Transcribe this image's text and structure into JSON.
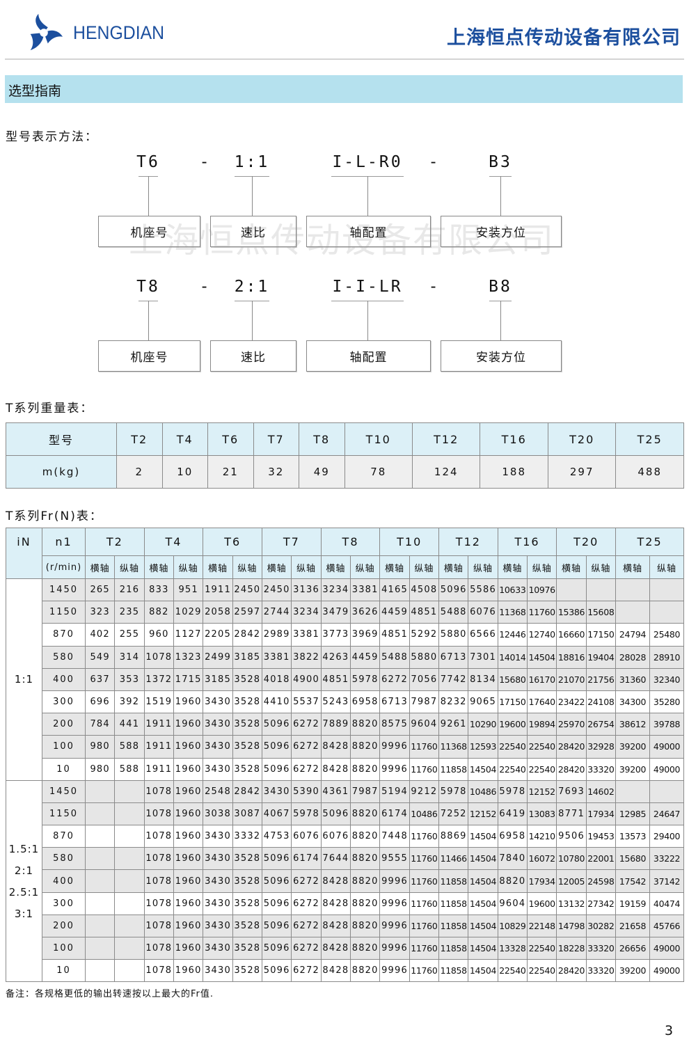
{
  "header": {
    "brand": "HENGDIAN",
    "company": "上海恒点传动设备有限公司",
    "brand_color": "#1c4f9e",
    "logo_icon": "pinwheel-logo"
  },
  "section_title": "选型指南",
  "model_notation": {
    "title": "型号表示方法：",
    "watermark": "上海恒点传动设备有限公司",
    "examples": [
      {
        "codes": [
          "T6",
          "-",
          "1:1",
          "I-L-R0",
          "-",
          "B3"
        ],
        "labels": [
          "机座号",
          "速比",
          "轴配置",
          "安装方位"
        ]
      },
      {
        "codes": [
          "T8",
          "-",
          "2:1",
          "I-I-LR",
          "-",
          "B8"
        ],
        "labels": [
          "机座号",
          "速比",
          "轴配置",
          "安装方位"
        ]
      }
    ]
  },
  "weight_table": {
    "title": "T系列重量表：",
    "row_header": [
      "型号",
      "m(kg)"
    ],
    "models": [
      "T2",
      "T4",
      "T6",
      "T7",
      "T8",
      "T10",
      "T12",
      "T16",
      "T20",
      "T25"
    ],
    "weights": [
      "2",
      "10",
      "21",
      "32",
      "49",
      "78",
      "124",
      "188",
      "297",
      "488"
    ]
  },
  "fr_table": {
    "title": "T系列Fr(N)表：",
    "col_iN": "iN",
    "col_n1": "n1",
    "col_n1_unit": "(r/min)",
    "models": [
      "T2",
      "T4",
      "T6",
      "T7",
      "T8",
      "T10",
      "T12",
      "T16",
      "T20",
      "T25"
    ],
    "sub_headers": [
      "横轴",
      "纵轴"
    ],
    "groups": [
      {
        "ratios": [
          "1:1"
        ],
        "rows": [
          {
            "n1": "1450",
            "values": [
              "265",
              "216",
              "833",
              "951",
              "1911",
              "2450",
              "2450",
              "3136",
              "3234",
              "3381",
              "4165",
              "4508",
              "5096",
              "5586",
              "10633",
              "10976",
              "",
              "",
              "",
              ""
            ]
          },
          {
            "n1": "1150",
            "values": [
              "323",
              "235",
              "882",
              "1029",
              "2058",
              "2597",
              "2744",
              "3234",
              "3479",
              "3626",
              "4459",
              "4851",
              "5488",
              "6076",
              "11368",
              "11760",
              "15386",
              "15608",
              "",
              ""
            ]
          },
          {
            "n1": "870",
            "values": [
              "402",
              "255",
              "960",
              "1127",
              "2205",
              "2842",
              "2989",
              "3381",
              "3773",
              "3969",
              "4851",
              "5292",
              "5880",
              "6566",
              "12446",
              "12740",
              "16660",
              "17150",
              "24794",
              "25480"
            ]
          },
          {
            "n1": "580",
            "values": [
              "549",
              "314",
              "1078",
              "1323",
              "2499",
              "3185",
              "3381",
              "3822",
              "4263",
              "4459",
              "5488",
              "5880",
              "6713",
              "7301",
              "14014",
              "14504",
              "18816",
              "19404",
              "28028",
              "28910"
            ]
          },
          {
            "n1": "400",
            "values": [
              "637",
              "353",
              "1372",
              "1715",
              "3185",
              "3528",
              "4018",
              "4900",
              "4851",
              "5978",
              "6272",
              "7056",
              "7742",
              "8134",
              "15680",
              "16170",
              "21070",
              "21756",
              "31360",
              "32340"
            ]
          },
          {
            "n1": "300",
            "values": [
              "696",
              "392",
              "1519",
              "1960",
              "3430",
              "3528",
              "4410",
              "5537",
              "5243",
              "6958",
              "6713",
              "7987",
              "8232",
              "9065",
              "17150",
              "17640",
              "23422",
              "24108",
              "34300",
              "35280"
            ]
          },
          {
            "n1": "200",
            "values": [
              "784",
              "441",
              "1911",
              "1960",
              "3430",
              "3528",
              "5096",
              "6272",
              "7889",
              "8820",
              "8575",
              "9604",
              "9261",
              "10290",
              "19600",
              "19894",
              "25970",
              "26754",
              "38612",
              "39788"
            ]
          },
          {
            "n1": "100",
            "values": [
              "980",
              "588",
              "1911",
              "1960",
              "3430",
              "3528",
              "5096",
              "6272",
              "8428",
              "8820",
              "9996",
              "11760",
              "11368",
              "12593",
              "22540",
              "22540",
              "28420",
              "32928",
              "39200",
              "49000"
            ]
          },
          {
            "n1": "10",
            "values": [
              "980",
              "588",
              "1911",
              "1960",
              "3430",
              "3528",
              "5096",
              "6272",
              "8428",
              "8820",
              "9996",
              "11760",
              "11858",
              "14504",
              "22540",
              "22540",
              "28420",
              "33320",
              "39200",
              "49000"
            ]
          }
        ]
      },
      {
        "ratios": [
          "1.5:1",
          "2:1",
          "2.5:1",
          "3:1"
        ],
        "rows": [
          {
            "n1": "1450",
            "values": [
              "",
              "",
              "1078",
              "1960",
              "2548",
              "2842",
              "3430",
              "5390",
              "4361",
              "7987",
              "5194",
              "9212",
              "5978",
              "10486",
              "5978",
              "12152",
              "7693",
              "14602",
              "",
              ""
            ]
          },
          {
            "n1": "1150",
            "values": [
              "",
              "",
              "1078",
              "1960",
              "3038",
              "3087",
              "4067",
              "5978",
              "5096",
              "8820",
              "6174",
              "10486",
              "7252",
              "12152",
              "6419",
              "13083",
              "8771",
              "17934",
              "12985",
              "24647"
            ]
          },
          {
            "n1": "870",
            "values": [
              "",
              "",
              "1078",
              "1960",
              "3430",
              "3332",
              "4753",
              "6076",
              "6076",
              "8820",
              "7448",
              "11760",
              "8869",
              "14504",
              "6958",
              "14210",
              "9506",
              "19453",
              "13573",
              "29400"
            ]
          },
          {
            "n1": "580",
            "values": [
              "",
              "",
              "1078",
              "1960",
              "3430",
              "3528",
              "5096",
              "6174",
              "7644",
              "8820",
              "9555",
              "11760",
              "11466",
              "14504",
              "7840",
              "16072",
              "10780",
              "22001",
              "15680",
              "33222"
            ]
          },
          {
            "n1": "400",
            "values": [
              "",
              "",
              "1078",
              "1960",
              "3430",
              "3528",
              "5096",
              "6272",
              "8428",
              "8820",
              "9996",
              "11760",
              "11858",
              "14504",
              "8820",
              "17934",
              "12005",
              "24598",
              "17542",
              "37142"
            ]
          },
          {
            "n1": "300",
            "values": [
              "",
              "",
              "1078",
              "1960",
              "3430",
              "3528",
              "5096",
              "6272",
              "8428",
              "8820",
              "9996",
              "11760",
              "11858",
              "14504",
              "9604",
              "19600",
              "13132",
              "27342",
              "19159",
              "40474"
            ]
          },
          {
            "n1": "200",
            "values": [
              "",
              "",
              "1078",
              "1960",
              "3430",
              "3528",
              "5096",
              "6272",
              "8428",
              "8820",
              "9996",
              "11760",
              "11858",
              "14504",
              "10829",
              "22148",
              "14798",
              "30282",
              "21658",
              "45766"
            ]
          },
          {
            "n1": "100",
            "values": [
              "",
              "",
              "1078",
              "1960",
              "3430",
              "3528",
              "5096",
              "6272",
              "8428",
              "8820",
              "9996",
              "11760",
              "11858",
              "14504",
              "13328",
              "22540",
              "18228",
              "33320",
              "26656",
              "49000"
            ]
          },
          {
            "n1": "10",
            "values": [
              "",
              "",
              "1078",
              "1960",
              "3430",
              "3528",
              "5096",
              "6272",
              "8428",
              "8820",
              "9996",
              "11760",
              "11858",
              "14504",
              "22540",
              "22540",
              "28420",
              "33320",
              "39200",
              "49000"
            ]
          }
        ]
      }
    ]
  },
  "footnote": "备注：各规格更低的输出转速按以上最大的Fr值.",
  "page_number": "3"
}
